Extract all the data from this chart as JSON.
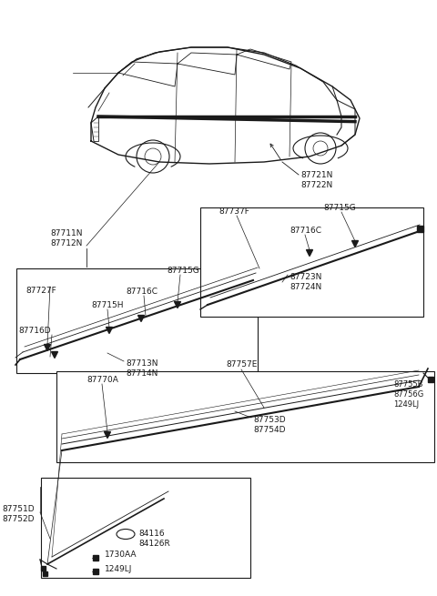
{
  "bg_color": "#ffffff",
  "line_color": "#1a1a1a",
  "fig_w": 4.8,
  "fig_h": 6.55,
  "dpi": 100,
  "labels": {
    "car_part": "87721N\n87722N",
    "box1_outer": "87711N\n87712N",
    "box1_87727F": "87727F",
    "box1_87715G": "87715G",
    "box1_87716C": "87716C",
    "box1_87715H": "87715H",
    "box1_87716D": "87716D",
    "box1_87713N": "87713N\n87714N",
    "box2_87737F": "87737F",
    "box2_87715G": "87715G",
    "box2_87716C": "87716C",
    "box2_87723N": "87723N\n87724N",
    "box3_87757E": "87757E",
    "box3_87755B": "87755B\n87756G\n1249LJ",
    "box3_87753D": "87753D\n87754D",
    "box3_87770A": "87770A",
    "box4_87751D": "87751D\n87752D",
    "box4_84116": "84116\n84126R",
    "box4_1730AA": "1730AA",
    "box4_1249LJ": "1249LJ"
  }
}
